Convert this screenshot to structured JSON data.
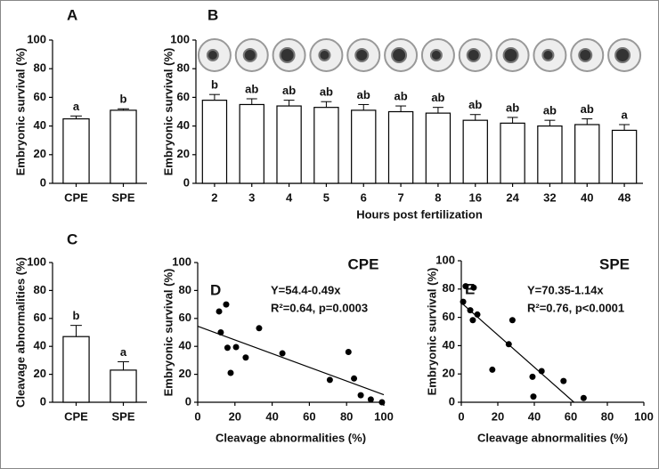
{
  "chart_data": [
    {
      "type": "bar",
      "title": "A",
      "ylabel": "Embryonic survival (%)",
      "categories": [
        "CPE",
        "SPE"
      ],
      "values": [
        45,
        51
      ],
      "errors": [
        2,
        1
      ],
      "letters": [
        "a",
        "b"
      ],
      "color": "#ffffff",
      "ylim": [
        0,
        100
      ],
      "yticks": [
        0,
        20,
        40,
        60,
        80,
        100
      ]
    },
    {
      "type": "bar",
      "title": "B",
      "ylabel": "Embryonic survival (%)",
      "xlabel": "Hours post fertilization",
      "categories": [
        "2",
        "3",
        "4",
        "5",
        "6",
        "7",
        "8",
        "16",
        "24",
        "32",
        "40",
        "48"
      ],
      "values": [
        58,
        55,
        54,
        53,
        51,
        50,
        49,
        44,
        42,
        40,
        41,
        37
      ],
      "errors": [
        4,
        4,
        4,
        4,
        4,
        4,
        4,
        4,
        4,
        4,
        4,
        4
      ],
      "letters": [
        "b",
        "ab",
        "ab",
        "ab",
        "ab",
        "ab",
        "ab",
        "ab",
        "ab",
        "ab",
        "ab",
        "a"
      ],
      "color": "#ffffff",
      "ylim": [
        0,
        100
      ],
      "yticks": [
        0,
        20,
        40,
        60,
        80,
        100
      ]
    },
    {
      "type": "bar",
      "title": "C",
      "ylabel": "Cleavage abnormalities (%)",
      "categories": [
        "CPE",
        "SPE"
      ],
      "values": [
        47,
        23
      ],
      "errors": [
        8,
        6
      ],
      "letters": [
        "b",
        "a"
      ],
      "color": "#ffffff",
      "ylim": [
        0,
        100
      ],
      "yticks": [
        0,
        20,
        40,
        60,
        80,
        100
      ]
    },
    {
      "type": "scatter",
      "title": "D",
      "group": "CPE",
      "ylabel": "Embryonic survival (%)",
      "xlabel": "Cleavage abnormalities (%)",
      "x": [
        11.5,
        12.4,
        15.3,
        16,
        17.7,
        20.6,
        25.8,
        33,
        45.5,
        71,
        81,
        84,
        87.6,
        93,
        99
      ],
      "values": [
        65,
        50,
        70,
        39,
        21,
        39.5,
        32,
        53,
        35,
        16,
        36,
        17,
        5,
        2,
        0
      ],
      "fit": {
        "intercept": 54.4,
        "slope": -0.49
      },
      "annotations": [
        "Y=54.4-0.49x",
        "R²=0.64, p=0.0003"
      ],
      "color": "#000000",
      "xlim": [
        0,
        100
      ],
      "xticks": [
        0,
        20,
        40,
        60,
        80,
        100
      ],
      "ylim": [
        0,
        100
      ],
      "yticks": [
        0,
        20,
        40,
        60,
        80,
        100
      ]
    },
    {
      "type": "scatter",
      "title": "E",
      "group": "SPE",
      "ylabel": "Embryonic survival (%)",
      "xlabel": "Cleavage abnormalities (%)",
      "x": [
        1,
        2.4,
        6.8,
        4.9,
        6.3,
        8.8,
        17,
        28,
        26,
        39,
        39.5,
        44,
        56,
        67
      ],
      "values": [
        71,
        82,
        81,
        65,
        58,
        62,
        23,
        58,
        41,
        18,
        4,
        22,
        15,
        3
      ],
      "fit": {
        "intercept": 70.35,
        "slope": -1.14
      },
      "annotations": [
        "Y=70.35-1.14x",
        "R²=0.76, p<0.0001"
      ],
      "color": "#000000",
      "xlim": [
        0,
        100
      ],
      "xticks": [
        0,
        20,
        40,
        60,
        80,
        100
      ],
      "ylim": [
        0,
        100
      ],
      "yticks": [
        0,
        20,
        40,
        60,
        80,
        100
      ]
    }
  ]
}
